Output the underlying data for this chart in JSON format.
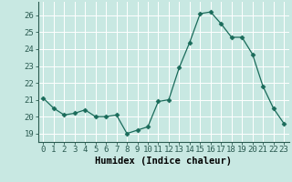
{
  "x": [
    0,
    1,
    2,
    3,
    4,
    5,
    6,
    7,
    8,
    9,
    10,
    11,
    12,
    13,
    14,
    15,
    16,
    17,
    18,
    19,
    20,
    21,
    22,
    23
  ],
  "y": [
    21.1,
    20.5,
    20.1,
    20.2,
    20.4,
    20.0,
    20.0,
    20.1,
    19.0,
    19.2,
    19.4,
    20.9,
    21.0,
    22.9,
    24.4,
    26.1,
    26.2,
    25.5,
    24.7,
    24.7,
    23.7,
    21.8,
    20.5,
    19.6
  ],
  "line_color": "#1a6b5a",
  "marker": "D",
  "marker_size": 2.5,
  "bg_color": "#c8e8e2",
  "grid_color": "#ffffff",
  "xlabel": "Humidex (Indice chaleur)",
  "ylim": [
    18.5,
    26.8
  ],
  "xlim": [
    -0.5,
    23.5
  ],
  "yticks": [
    19,
    20,
    21,
    22,
    23,
    24,
    25,
    26
  ],
  "xticks": [
    0,
    1,
    2,
    3,
    4,
    5,
    6,
    7,
    8,
    9,
    10,
    11,
    12,
    13,
    14,
    15,
    16,
    17,
    18,
    19,
    20,
    21,
    22,
    23
  ],
  "tick_fontsize": 6.5,
  "label_fontsize": 7.5,
  "tick_color": "#2a5a50"
}
